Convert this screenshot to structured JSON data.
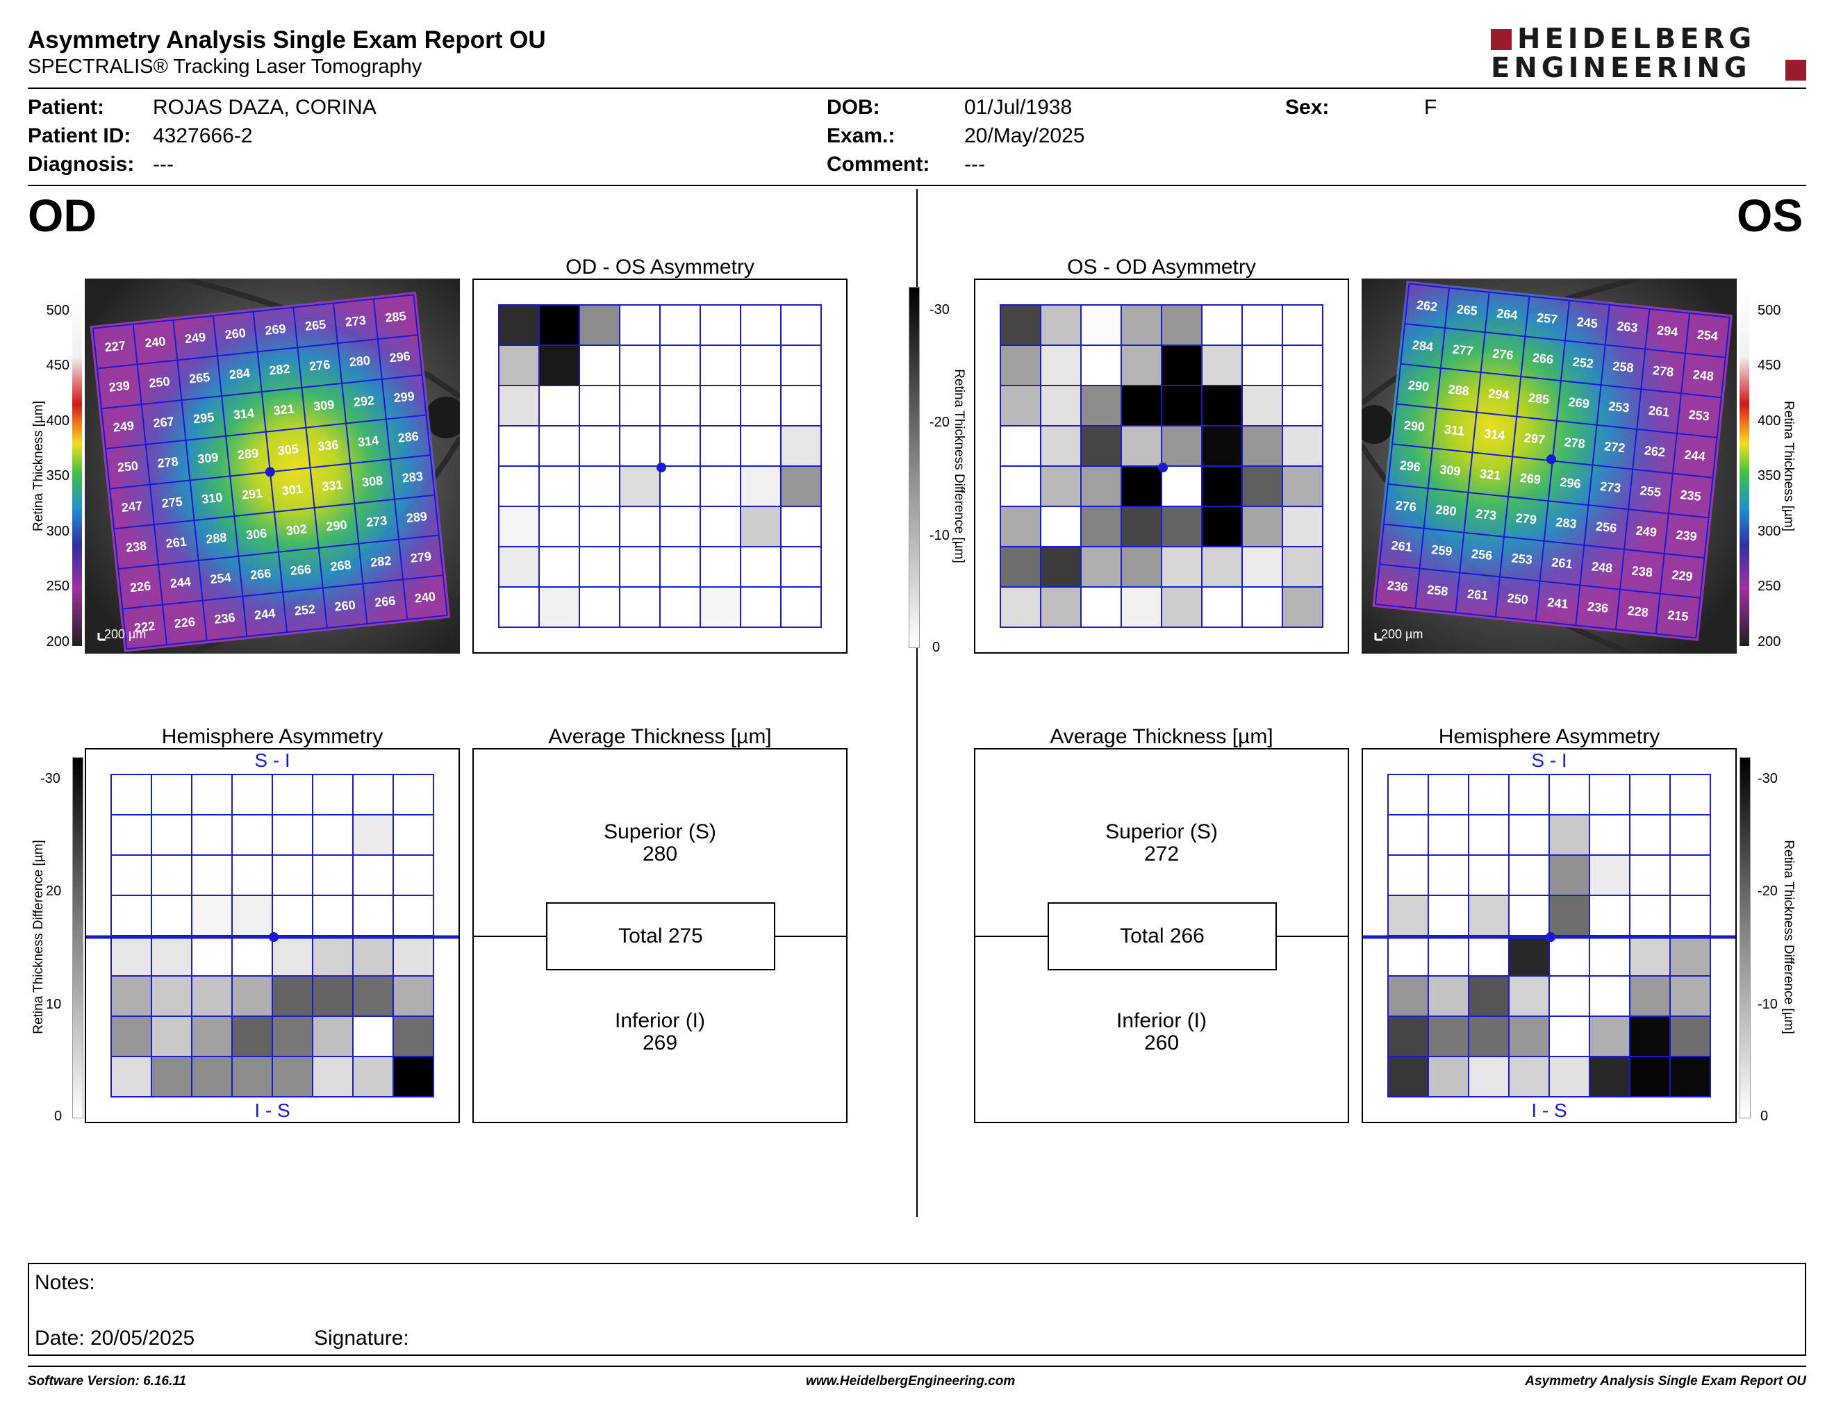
{
  "header": {
    "title": "Asymmetry Analysis Single Exam Report OU",
    "subtitle": "SPECTRALIS® Tracking Laser Tomography",
    "logo_line1": "HEIDELBERG",
    "logo_line2": "ENGINEERING"
  },
  "patient": {
    "patient_label": "Patient:",
    "patient_value": "ROJAS DAZA, CORINA",
    "id_label": "Patient ID:",
    "id_value": "4327666-2",
    "diagnosis_label": "Diagnosis:",
    "diagnosis_value": "---",
    "dob_label": "DOB:",
    "dob_value": "01/Jul/1938",
    "exam_label": "Exam.:",
    "exam_value": "20/May/2025",
    "comment_label": "Comment:",
    "comment_value": "---",
    "sex_label": "Sex:",
    "sex_value": "F"
  },
  "eyes": {
    "od": "OD",
    "os": "OS"
  },
  "panels": {
    "od_os_title": "OD - OS Asymmetry",
    "os_od_title": "OS - OD Asymmetry",
    "hemi_title": "Hemisphere Asymmetry",
    "avg_title": "Average Thickness [µm]",
    "si_label": "S - I",
    "is_label": "I - S",
    "scale_bar": "200 µm"
  },
  "axes": {
    "thickness_label": "Retina  Thickness [µm]",
    "thickness_ticks": [
      "500",
      "450",
      "400",
      "350",
      "300",
      "250",
      "200"
    ],
    "diff_label": "Retina Thickness Difference [µm]",
    "diff_ticks": [
      "-30",
      "-20",
      "-10",
      "0"
    ],
    "diff_ticks_alt": [
      "-30",
      "20",
      "10",
      "0"
    ]
  },
  "od_average": {
    "superior_label": "Superior (S)",
    "superior_value": "280",
    "total_label": "Total 275",
    "inferior_label": "Inferior (I)",
    "inferior_value": "269"
  },
  "os_average": {
    "superior_label": "Superior (S)",
    "superior_value": "272",
    "total_label": "Total 266",
    "inferior_label": "Inferior (I)",
    "inferior_value": "260"
  },
  "od_thickness_grid": [
    [
      "227",
      "240",
      "249",
      "260",
      "269",
      "265",
      "273",
      "285"
    ],
    [
      "239",
      "250",
      "265",
      "284",
      "282",
      "276",
      "280",
      "296"
    ],
    [
      "249",
      "267",
      "295",
      "314",
      "321",
      "309",
      "292",
      "299"
    ],
    [
      "250",
      "278",
      "309",
      "289",
      "305",
      "336",
      "314",
      "286"
    ],
    [
      "247",
      "275",
      "310",
      "291",
      "301",
      "331",
      "308",
      "283"
    ],
    [
      "238",
      "261",
      "288",
      "306",
      "302",
      "290",
      "273",
      "289"
    ],
    [
      "226",
      "244",
      "254",
      "266",
      "266",
      "268",
      "282",
      "279"
    ],
    [
      "222",
      "226",
      "236",
      "244",
      "252",
      "260",
      "266",
      "240"
    ]
  ],
  "os_thickness_grid": [
    [
      "262",
      "265",
      "264",
      "257",
      "245",
      "263",
      "294",
      "254"
    ],
    [
      "284",
      "277",
      "276",
      "266",
      "252",
      "258",
      "278",
      "248"
    ],
    [
      "290",
      "288",
      "294",
      "285",
      "269",
      "253",
      "261",
      "253"
    ],
    [
      "290",
      "311",
      "314",
      "297",
      "278",
      "272",
      "262",
      "244"
    ],
    [
      "296",
      "309",
      "321",
      "269",
      "296",
      "273",
      "255",
      "235"
    ],
    [
      "276",
      "280",
      "273",
      "279",
      "283",
      "256",
      "249",
      "239"
    ],
    [
      "261",
      "259",
      "256",
      "253",
      "261",
      "248",
      "238",
      "229"
    ],
    [
      "236",
      "258",
      "261",
      "250",
      "241",
      "236",
      "228",
      "215"
    ]
  ],
  "od_os_asym_shades": [
    [
      45,
      0,
      140,
      255,
      255,
      255,
      255,
      255
    ],
    [
      190,
      25,
      255,
      255,
      255,
      255,
      255,
      255
    ],
    [
      225,
      255,
      255,
      255,
      255,
      255,
      255,
      255
    ],
    [
      255,
      255,
      255,
      255,
      255,
      255,
      255,
      230
    ],
    [
      255,
      255,
      255,
      220,
      255,
      255,
      240,
      150
    ],
    [
      245,
      255,
      255,
      255,
      255,
      255,
      205,
      255
    ],
    [
      235,
      255,
      255,
      255,
      255,
      255,
      255,
      255
    ],
    [
      255,
      240,
      255,
      255,
      255,
      245,
      255,
      255
    ]
  ],
  "os_od_asym_shades": [
    [
      70,
      195,
      250,
      170,
      150,
      255,
      255,
      255
    ],
    [
      160,
      230,
      255,
      180,
      0,
      215,
      255,
      255
    ],
    [
      185,
      225,
      140,
      0,
      0,
      0,
      225,
      255
    ],
    [
      255,
      215,
      70,
      190,
      150,
      10,
      150,
      225
    ],
    [
      255,
      185,
      160,
      0,
      255,
      0,
      95,
      175
    ],
    [
      170,
      255,
      130,
      70,
      100,
      0,
      165,
      225
    ],
    [
      110,
      60,
      175,
      155,
      215,
      210,
      235,
      210
    ],
    [
      220,
      190,
      255,
      240,
      205,
      255,
      255,
      180
    ]
  ],
  "od_hemi_shades": [
    [
      255,
      255,
      255,
      255,
      255,
      255,
      255,
      255
    ],
    [
      255,
      255,
      255,
      255,
      255,
      255,
      235,
      255
    ],
    [
      255,
      255,
      255,
      255,
      255,
      255,
      255,
      255
    ],
    [
      255,
      255,
      245,
      240,
      255,
      255,
      255,
      255
    ],
    [
      230,
      230,
      255,
      255,
      230,
      210,
      205,
      225
    ],
    [
      175,
      200,
      195,
      175,
      100,
      100,
      110,
      175
    ],
    [
      150,
      200,
      160,
      100,
      120,
      190,
      255,
      110
    ],
    [
      220,
      140,
      140,
      140,
      140,
      220,
      205,
      0
    ]
  ],
  "os_hemi_shades": [
    [
      255,
      255,
      255,
      255,
      255,
      255,
      255,
      255
    ],
    [
      255,
      255,
      255,
      255,
      200,
      255,
      255,
      255
    ],
    [
      255,
      255,
      255,
      255,
      145,
      235,
      255,
      255
    ],
    [
      210,
      255,
      210,
      255,
      110,
      255,
      255,
      255
    ],
    [
      255,
      255,
      255,
      40,
      255,
      255,
      210,
      175
    ],
    [
      150,
      195,
      85,
      210,
      255,
      255,
      155,
      175
    ],
    [
      70,
      120,
      110,
      150,
      255,
      175,
      10,
      110
    ],
    [
      55,
      195,
      230,
      210,
      225,
      40,
      5,
      10
    ]
  ],
  "notes": {
    "notes_label": "Notes:",
    "date_label": "Date: 20/05/2025",
    "signature_label": "Signature:"
  },
  "footer": {
    "software": "Software Version: 6.16.11",
    "website": "www.HeidelbergEngineering.com",
    "report": "Asymmetry Analysis Single Exam Report OU"
  },
  "colors": {
    "grid_blue": "#1a1ad4",
    "logo_red": "#9b1b2e",
    "logo_black": "#1a1a1a"
  }
}
